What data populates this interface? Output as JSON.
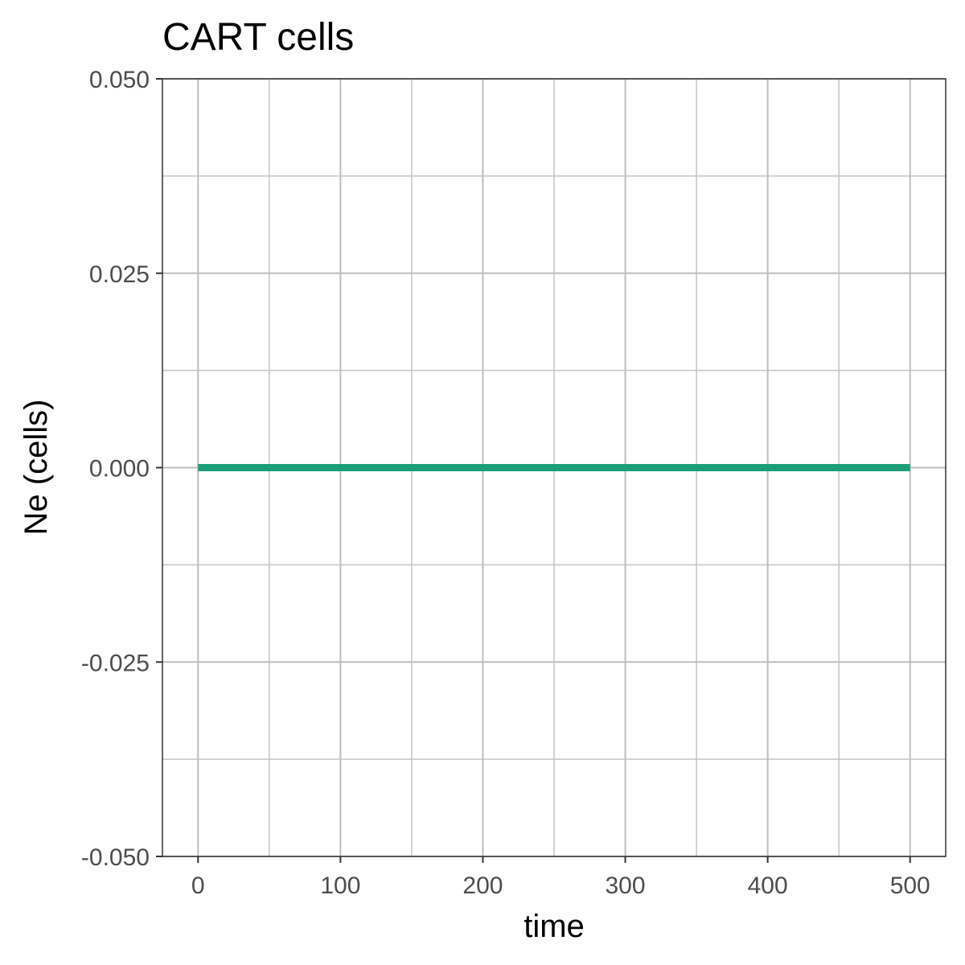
{
  "chart_data": {
    "type": "line",
    "title": "CART cells",
    "xlabel": "time",
    "ylabel": "Ne (cells)",
    "xlim": [
      -25,
      525
    ],
    "ylim": [
      -0.05,
      0.05
    ],
    "x_ticks": [
      0,
      100,
      200,
      300,
      400,
      500
    ],
    "x_tick_labels": [
      "0",
      "100",
      "200",
      "300",
      "400",
      "500"
    ],
    "y_ticks": [
      -0.05,
      -0.025,
      0,
      0.025,
      0.05
    ],
    "y_tick_labels": [
      "-0.050",
      "-0.025",
      "0.000",
      "0.025",
      "0.050"
    ],
    "grid": true,
    "legend": "none",
    "series": [
      {
        "color": "#1b9e77",
        "x": [
          0,
          100,
          200,
          300,
          400,
          500
        ],
        "y": [
          0,
          0,
          0,
          0,
          0,
          0
        ]
      }
    ]
  }
}
